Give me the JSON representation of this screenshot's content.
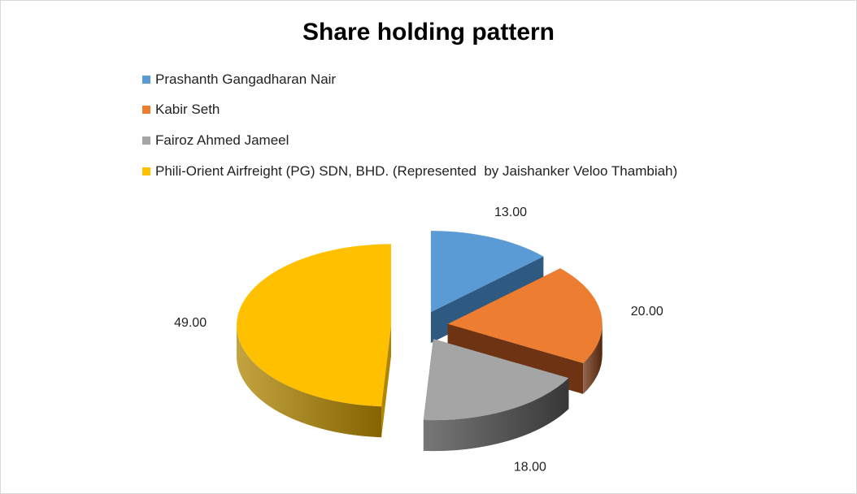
{
  "chart_data": {
    "type": "pie",
    "style": "3d-exploded",
    "title": "Share holding pattern",
    "legend_position": "top",
    "categories": [
      "Prashanth Gangadharan Nair",
      "Kabir Seth",
      "Fairoz Ahmed Jameel",
      "Phili-Orient Airfreight (PG) SDN, BHD. (Represented  by Jaishanker Veloo Thambiah)"
    ],
    "values": [
      13,
      20,
      18,
      49
    ],
    "data_labels": [
      "13.00",
      "20.00",
      "18.00",
      "49.00"
    ],
    "colors": [
      "#5B9BD5",
      "#ED7D31",
      "#A5A5A5",
      "#FFC000"
    ],
    "side_colors": [
      "#2E5A82",
      "#6E3312",
      "#4A4A4A",
      "#B08500"
    ]
  }
}
